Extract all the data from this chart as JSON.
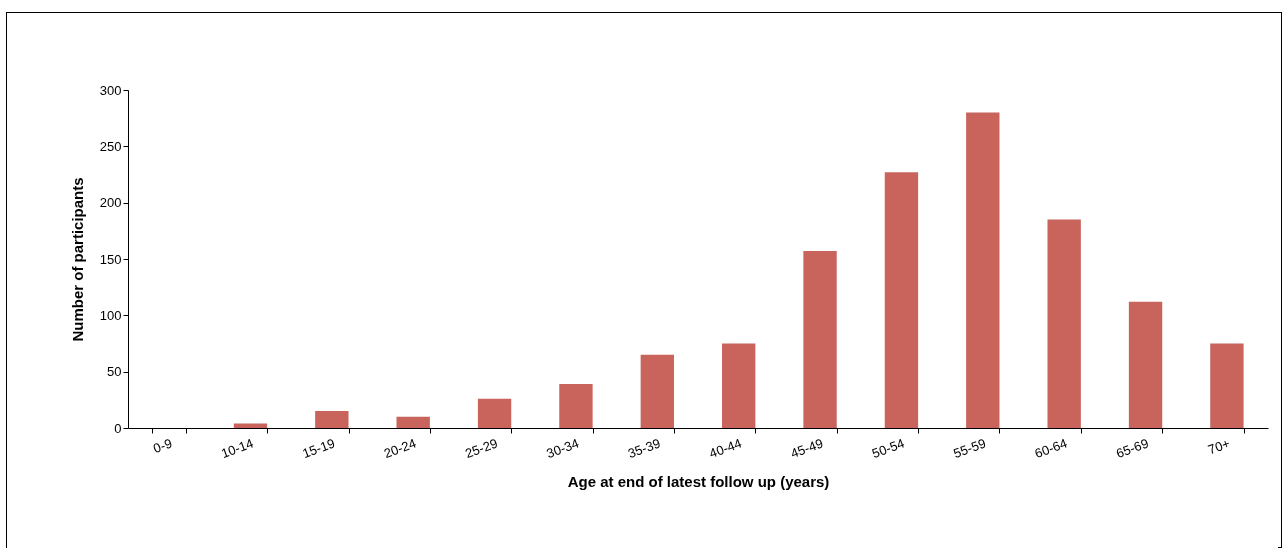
{
  "chart_data": {
    "type": "bar",
    "xlabel": "Age at end of latest follow up (years)",
    "ylabel": "Number of participants",
    "categories": [
      "0-9",
      "10-14",
      "15-19",
      "20-24",
      "25-29",
      "30-34",
      "35-39",
      "40-44",
      "45-49",
      "50-54",
      "55-59",
      "60-64",
      "65-69",
      "70+"
    ],
    "values": [
      0,
      4,
      15,
      10,
      26,
      39,
      65,
      75,
      157,
      227,
      280,
      185,
      112,
      75
    ],
    "color": "#c8645c",
    "ylim": [
      0,
      300
    ],
    "yticks": [
      0,
      50,
      100,
      150,
      200,
      250,
      300
    ],
    "grid": false
  }
}
